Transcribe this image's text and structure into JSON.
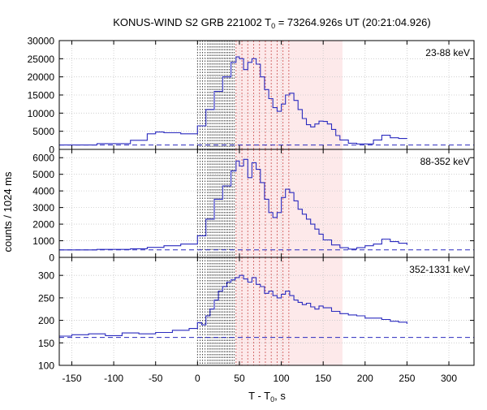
{
  "chart_data": {
    "type": "line",
    "title": {
      "main": "KONUS-WIND S2 GRB 221002 T",
      "sub": "0",
      "rest": " = 73264.926s UT (20:21:04.926)"
    },
    "xlabel": {
      "main": "T - T",
      "sub": "0",
      "rest": ", s"
    },
    "ylabel": "counts / 1024 ms",
    "xlim": [
      -165,
      330
    ],
    "xticks": [
      "-150",
      "-100",
      "-50",
      "0",
      "50",
      "100",
      "150",
      "200",
      "250",
      "300"
    ],
    "grid": true,
    "line_color": "#2b2bbf",
    "shade_color": "#fde9ea",
    "vline_black_color": "#333333",
    "vline_red_color": "#d06060",
    "shaded_interval": [
      46,
      173
    ],
    "vlines_black": [
      0,
      3,
      6,
      9,
      12,
      14,
      16,
      18,
      20,
      22,
      24,
      26,
      28,
      30,
      32,
      34,
      36,
      38,
      40,
      42,
      44
    ],
    "vlines_red": [
      46,
      53,
      60,
      67,
      74,
      81,
      88,
      95,
      102,
      109
    ],
    "panels": [
      {
        "label": "23-88 keV",
        "ylim": [
          0,
          30000
        ],
        "yticks": [
          "0",
          "5000",
          "10000",
          "15000",
          "20000",
          "25000",
          "30000"
        ],
        "background": 1200,
        "x": [
          -165,
          -120,
          -80,
          -60,
          -50,
          -40,
          -20,
          0,
          10,
          20,
          30,
          40,
          46,
          50,
          55,
          60,
          65,
          70,
          75,
          80,
          85,
          90,
          95,
          100,
          105,
          110,
          115,
          120,
          125,
          130,
          135,
          140,
          145,
          150,
          155,
          160,
          165,
          170,
          180,
          190,
          200,
          210,
          220,
          230,
          240,
          250
        ],
        "y": [
          1200,
          1600,
          2500,
          4300,
          4800,
          4600,
          4300,
          6500,
          11000,
          16000,
          20000,
          24000,
          25500,
          25000,
          22000,
          24000,
          25000,
          23500,
          20000,
          16500,
          14000,
          11500,
          10500,
          12500,
          15000,
          15500,
          13500,
          11000,
          8500,
          6800,
          6200,
          7000,
          7800,
          7700,
          7000,
          5500,
          3800,
          2600,
          1700,
          1500,
          1500,
          2600,
          3900,
          3200,
          3000,
          3100
        ]
      },
      {
        "label": "88-352 keV",
        "ylim": [
          0,
          6500
        ],
        "yticks": [
          "0",
          "1000",
          "2000",
          "3000",
          "4000",
          "5000",
          "6000"
        ],
        "background": 450,
        "x": [
          -165,
          -120,
          -80,
          -60,
          -40,
          -20,
          0,
          10,
          20,
          30,
          40,
          46,
          50,
          55,
          60,
          65,
          70,
          75,
          80,
          85,
          90,
          95,
          100,
          105,
          110,
          115,
          120,
          125,
          130,
          135,
          140,
          145,
          150,
          160,
          170,
          180,
          190,
          200,
          210,
          220,
          230,
          240,
          250
        ],
        "y": [
          450,
          480,
          520,
          600,
          700,
          800,
          1300,
          2300,
          3500,
          4300,
          5200,
          5800,
          5500,
          5900,
          4800,
          5700,
          5300,
          4500,
          3500,
          2700,
          2400,
          2700,
          3600,
          4100,
          3900,
          3400,
          2900,
          2600,
          2300,
          2000,
          1700,
          1400,
          1050,
          750,
          580,
          500,
          580,
          700,
          800,
          1100,
          950,
          850,
          750
        ]
      },
      {
        "label": "352-1331 keV",
        "ylim": [
          100,
          340
        ],
        "yticks": [
          "100",
          "150",
          "200",
          "250",
          "300"
        ],
        "background": 162,
        "x": [
          -165,
          -150,
          -130,
          -110,
          -90,
          -70,
          -50,
          -30,
          -10,
          0,
          5,
          10,
          15,
          20,
          25,
          30,
          35,
          40,
          45,
          50,
          55,
          60,
          65,
          70,
          75,
          80,
          85,
          90,
          95,
          100,
          105,
          110,
          115,
          120,
          125,
          130,
          135,
          140,
          145,
          150,
          160,
          170,
          180,
          190,
          200,
          210,
          220,
          230,
          240,
          250
        ],
        "y": [
          165,
          168,
          170,
          166,
          172,
          170,
          173,
          178,
          182,
          195,
          190,
          210,
          225,
          245,
          265,
          275,
          285,
          290,
          295,
          300,
          292,
          285,
          295,
          280,
          275,
          260,
          265,
          255,
          250,
          258,
          265,
          255,
          245,
          240,
          235,
          238,
          230,
          225,
          232,
          228,
          220,
          215,
          212,
          210,
          205,
          205,
          202,
          198,
          196,
          192
        ]
      }
    ]
  }
}
